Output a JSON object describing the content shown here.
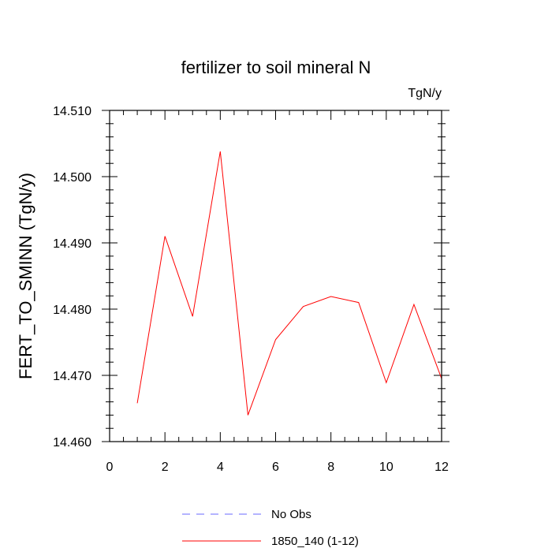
{
  "chart_data": {
    "type": "line",
    "title": "fertilizer to soil mineral N",
    "units_label": "TgN/y",
    "ylabel": "FERT_TO_SMINN  (TgN/y)",
    "xlabel": "",
    "xlim": [
      0,
      12
    ],
    "ylim": [
      14.46,
      14.51
    ],
    "x_ticks": [
      0,
      2,
      4,
      6,
      8,
      10,
      12
    ],
    "x_tick_labels": [
      "0",
      "2",
      "4",
      "6",
      "8",
      "10",
      "12"
    ],
    "y_ticks": [
      14.46,
      14.47,
      14.48,
      14.49,
      14.5,
      14.51
    ],
    "y_tick_labels": [
      "14.460",
      "14.470",
      "14.480",
      "14.490",
      "14.500",
      "14.510"
    ],
    "grid": false,
    "legend_position": "bottom",
    "series": [
      {
        "name": "No Obs",
        "color": "#6a6aff",
        "dash": "dashed",
        "x": [],
        "y": []
      },
      {
        "name": "1850_140 (1-12)",
        "color": "#ff0000",
        "dash": "solid",
        "x": [
          1,
          2,
          3,
          4,
          5,
          6,
          7,
          8,
          9,
          10,
          11,
          12
        ],
        "y": [
          14.4658,
          14.491,
          14.4789,
          14.5038,
          14.464,
          14.4754,
          14.4804,
          14.4819,
          14.481,
          14.4689,
          14.4807,
          14.4695
        ]
      }
    ]
  }
}
